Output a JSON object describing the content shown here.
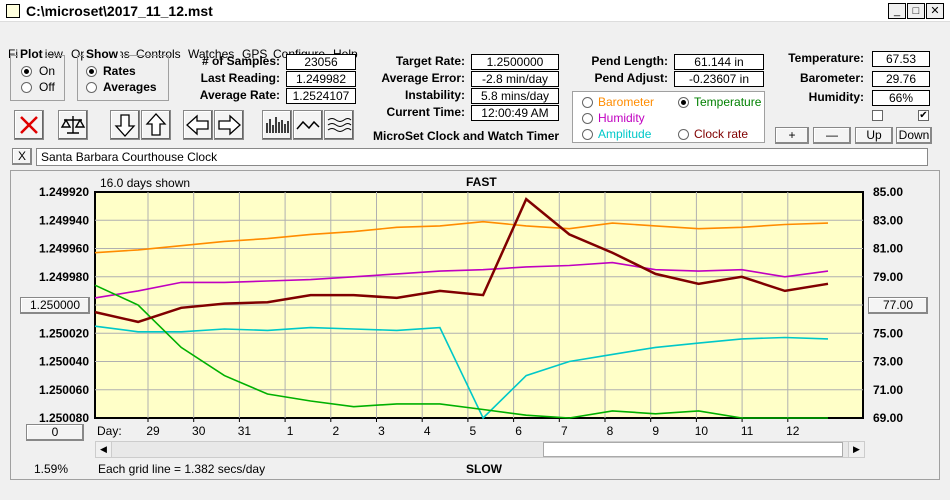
{
  "window": {
    "title": "C:\\microset\\2017_11_12.mst"
  },
  "menu": [
    "File",
    "View",
    "Operations",
    "Controls",
    "Watches",
    "GPS",
    "Configure",
    "Help"
  ],
  "plot_group": {
    "title": "Plot",
    "on": "On",
    "off": "Off"
  },
  "show_group": {
    "title": "Show",
    "rates": "Rates",
    "averages": "Averages"
  },
  "stats": {
    "samples_label": "# of Samples:",
    "samples": "23056",
    "last_label": "Last Reading:",
    "last": "1.249982",
    "avg_label": "Average Rate:",
    "avg": "1.2524107",
    "target_label": "Target Rate:",
    "target": "1.2500000",
    "avgerr_label": "Average Error:",
    "avgerr": "-2.8 min/day",
    "instab_label": "Instability:",
    "instab": "5.8 mins/day",
    "time_label": "Current Time:",
    "time": "12:00:49 AM",
    "pendlen_label": "Pend Length:",
    "pendlen": "61.144 in",
    "pendadj_label": "Pend Adjust:",
    "pendadj": "-0.23607 in",
    "temp_label": "Temperature:",
    "temp": "67.53",
    "baro_label": "Barometer:",
    "baro": "29.76",
    "hum_label": "Humidity:",
    "hum": "66%"
  },
  "app_caption": "MicroSet Clock and Watch Timer",
  "sensor_group": {
    "barometer": "Barometer",
    "temperature": "Temperature",
    "humidity": "Humidity",
    "amplitude": "Amplitude",
    "clock_rate": "Clock rate",
    "colors": {
      "barometer": "#ff8c00",
      "temperature": "#008000",
      "humidity": "#c000c0",
      "amplitude": "#00c8c8",
      "clock_rate": "#800000"
    }
  },
  "buttons": {
    "plus": "+",
    "minus": "—",
    "up": "Up",
    "down": "Down",
    "x": "X",
    "zero": "0",
    "mid_left": "1.250000",
    "mid_right": "77.00"
  },
  "watch_name": "Santa Barbara Courthouse Clock",
  "chart_data": {
    "type": "line",
    "top_label": "FAST",
    "bottom_label": "SLOW",
    "days_shown": "16.0 days shown",
    "grid_note": "Each grid line = 1.382 secs/day",
    "percent": "1.59%",
    "x_prefix": "Day:",
    "x_ticks": [
      "29",
      "30",
      "31",
      "1",
      "2",
      "3",
      "4",
      "5",
      "6",
      "7",
      "8",
      "9",
      "10",
      "11",
      "12"
    ],
    "y_left_ticks": [
      "1.249920",
      "1.249940",
      "1.249960",
      "1.249980",
      "1.250000",
      "1.250020",
      "1.250040",
      "1.250060",
      "1.250080"
    ],
    "y_right_ticks": [
      "85.00",
      "83.00",
      "81.00",
      "79.00",
      "77.00",
      "75.00",
      "73.00",
      "71.00",
      "69.00"
    ],
    "y_left_range": [
      1.24992,
      1.25008
    ],
    "y_right_range": [
      69,
      85
    ],
    "grid": true,
    "series": [
      {
        "key": "barometer",
        "color": "#ff8c00",
        "y": [
          1.249963,
          1.249961,
          1.249958,
          1.249955,
          1.249953,
          1.24995,
          1.249948,
          1.249945,
          1.249944,
          1.249941,
          1.249944,
          1.249946,
          1.249942,
          1.249944,
          1.249946,
          1.249945,
          1.249943,
          1.249942
        ]
      },
      {
        "key": "humidity",
        "color": "#c000c0",
        "y": [
          1.249995,
          1.24999,
          1.249984,
          1.249984,
          1.249983,
          1.249982,
          1.24998,
          1.249978,
          1.249976,
          1.249975,
          1.249973,
          1.249972,
          1.24997,
          1.249975,
          1.249976,
          1.249975,
          1.24998,
          1.249976
        ]
      },
      {
        "key": "amplitude",
        "color": "#00c8c8",
        "y": [
          1.250015,
          1.250019,
          1.250019,
          1.250017,
          1.250018,
          1.250016,
          1.250017,
          1.250018,
          1.250016,
          1.25008,
          1.25005,
          1.25004,
          1.250035,
          1.25003,
          1.250027,
          1.250024,
          1.250023,
          1.250024
        ]
      },
      {
        "key": "temperature",
        "color": "#00b000",
        "y": [
          1.249986,
          1.25,
          1.25003,
          1.25005,
          1.250063,
          1.250068,
          1.250072,
          1.25007,
          1.25007,
          1.250074,
          1.250078,
          1.25008,
          1.250075,
          1.250077,
          1.250075,
          1.25008,
          1.25008,
          1.25008
        ]
      },
      {
        "key": "clock_rate",
        "color": "#800000",
        "y": [
          1.250005,
          1.250012,
          1.250002,
          1.249999,
          1.249998,
          1.249993,
          1.249993,
          1.249995,
          1.24999,
          1.249993,
          1.249925,
          1.24995,
          1.249963,
          1.249978,
          1.249985,
          1.24998,
          1.24999,
          1.249985
        ]
      }
    ]
  }
}
